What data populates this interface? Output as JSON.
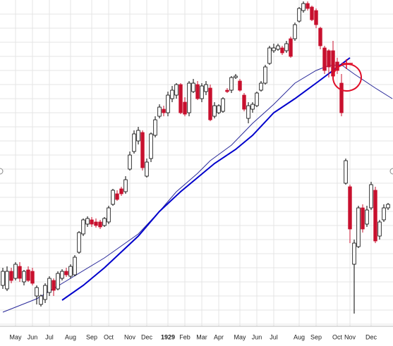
{
  "chart_data": {
    "type": "candlestick",
    "categories": [
      null,
      null,
      null,
      "May",
      null,
      null,
      null,
      "Jun",
      null,
      null,
      null,
      "Jul",
      null,
      null,
      null,
      null,
      "Aug",
      null,
      null,
      null,
      null,
      "Sep",
      null,
      null,
      null,
      "Oct",
      null,
      null,
      null,
      null,
      "Nov",
      null,
      null,
      null,
      "Dec",
      null,
      null,
      null,
      null,
      "1929",
      null,
      null,
      null,
      "Feb",
      null,
      null,
      null,
      "Mar",
      null,
      null,
      null,
      "Apr",
      null,
      null,
      null,
      null,
      "May",
      null,
      null,
      null,
      "Jun",
      null,
      null,
      null,
      "Jul",
      null,
      null,
      null,
      null,
      null,
      "Aug",
      null,
      null,
      null,
      "Sep",
      null,
      null,
      null,
      null,
      "Oct",
      null,
      null,
      "Nov",
      null,
      null,
      null,
      null,
      "Dec",
      null,
      null,
      null,
      null
    ],
    "open": [
      85,
      80,
      105,
      95,
      112,
      90,
      107,
      105,
      70,
      58,
      65,
      75,
      92,
      80,
      95,
      105,
      98,
      100,
      132,
      158,
      172,
      178,
      175,
      175,
      170,
      175,
      200,
      215,
      222,
      218,
      250,
      275,
      290,
      302,
      240,
      265,
      298,
      325,
      335,
      330,
      350,
      355,
      370,
      345,
      330,
      360,
      370,
      350,
      360,
      365,
      325,
      330,
      332,
      362,
      362,
      380,
      375,
      355,
      322,
      335,
      340,
      362,
      372,
      400,
      418,
      420,
      422,
      418,
      435,
      435,
      460,
      475,
      485,
      480,
      475,
      450,
      422,
      418,
      418,
      402,
      372,
      230,
      225,
      115,
      140,
      195,
      172,
      195,
      220,
      155,
      178,
      195
    ],
    "high": [
      110,
      112,
      110,
      118,
      118,
      107,
      112,
      110,
      85,
      72,
      88,
      98,
      95,
      105,
      108,
      110,
      115,
      128,
      162,
      180,
      183,
      182,
      180,
      178,
      182,
      198,
      222,
      220,
      225,
      240,
      275,
      305,
      310,
      305,
      265,
      302,
      325,
      342,
      340,
      360,
      368,
      372,
      372,
      352,
      375,
      378,
      375,
      372,
      375,
      370,
      345,
      342,
      352,
      365,
      382,
      385,
      378,
      358,
      345,
      345,
      360,
      375,
      398,
      425,
      428,
      428,
      425,
      432,
      438,
      458,
      480,
      488,
      488,
      482,
      478,
      452,
      425,
      420,
      432,
      408,
      385,
      265,
      228,
      150,
      198,
      200,
      198,
      232,
      225,
      178,
      200,
      202
    ],
    "low": [
      80,
      77,
      88,
      92,
      90,
      85,
      90,
      85,
      58,
      55,
      60,
      70,
      70,
      78,
      92,
      97,
      95,
      98,
      130,
      155,
      168,
      168,
      167,
      165,
      168,
      172,
      198,
      205,
      212,
      215,
      248,
      272,
      285,
      248,
      238,
      260,
      295,
      322,
      325,
      325,
      345,
      350,
      328,
      325,
      325,
      358,
      348,
      345,
      355,
      318,
      322,
      328,
      330,
      358,
      358,
      378,
      360,
      332,
      315,
      330,
      338,
      360,
      370,
      398,
      415,
      418,
      412,
      415,
      408,
      432,
      458,
      472,
      475,
      460,
      450,
      420,
      385,
      380,
      378,
      385,
      325,
      228,
      145,
      45,
      138,
      160,
      168,
      192,
      145,
      150,
      175,
      192
    ],
    "close": [
      105,
      105,
      92,
      115,
      95,
      105,
      92,
      88,
      82,
      70,
      85,
      95,
      78,
      102,
      105,
      100,
      112,
      125,
      160,
      178,
      180,
      172,
      170,
      168,
      180,
      195,
      220,
      207,
      215,
      235,
      270,
      300,
      305,
      252,
      260,
      300,
      320,
      338,
      330,
      355,
      362,
      370,
      330,
      328,
      372,
      372,
      350,
      368,
      370,
      320,
      340,
      340,
      350,
      360,
      380,
      382,
      362,
      335,
      340,
      342,
      358,
      372,
      395,
      422,
      422,
      425,
      415,
      428,
      410,
      455,
      478,
      485,
      478,
      462,
      455,
      425,
      390,
      395,
      382,
      390,
      330,
      262,
      165,
      145,
      195,
      165,
      192,
      228,
      148,
      175,
      195,
      200
    ],
    "up_color": "#ffffff",
    "down_color": "#c8102e",
    "averages": [
      {
        "color": "#2a2a9a",
        "x": [
          0,
          8,
          16,
          24,
          32,
          37,
          41,
          46,
          49,
          54,
          59,
          64,
          69,
          74,
          77,
          80,
          83,
          88,
          92
        ],
        "values": [
          47,
          66,
          95,
          124,
          158,
          190,
          218,
          244,
          262,
          284,
          315,
          342,
          372,
          390,
          397,
          398,
          385,
          365,
          350
        ]
      },
      {
        "color": "#0000cc",
        "x": [
          14,
          19,
          24,
          32,
          37,
          42,
          46,
          50,
          55,
          59,
          64,
          69,
          74,
          78,
          82
        ],
        "values": [
          64,
          85,
          110,
          155,
          190,
          218,
          238,
          258,
          278,
          298,
          330,
          350,
          372,
          390,
          408
        ]
      }
    ],
    "ylim": [
      0,
      490
    ],
    "ygrid": [
      30,
      50,
      70,
      90,
      110,
      130,
      150,
      170,
      190,
      210,
      230,
      250,
      270,
      290,
      310,
      330,
      350,
      370,
      390,
      410,
      430,
      450,
      470
    ],
    "grid": true
  }
}
